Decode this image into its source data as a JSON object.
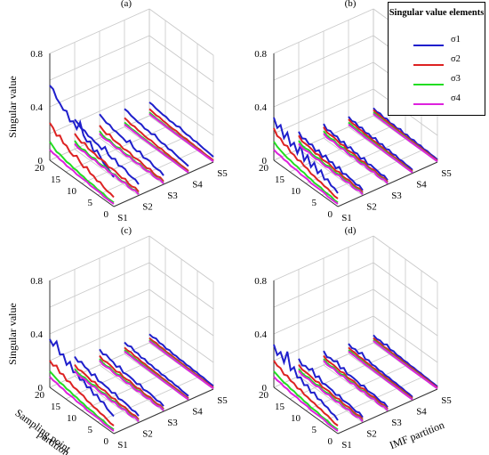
{
  "figure": {
    "ylabel": "Singular value",
    "xlabel": "Sampling point\npartition",
    "zlabel_imf": "IMF partition",
    "z_ticks": [
      "0",
      "0.4",
      "0.8"
    ],
    "x_ticks": [
      "20",
      "15",
      "10",
      "5",
      "0"
    ],
    "s_ticks": [
      "S1",
      "S2",
      "S3",
      "S4",
      "S5"
    ]
  },
  "legend": {
    "title": "Singular value elements",
    "items": [
      {
        "label": "σ1",
        "color": "#1f1fcc"
      },
      {
        "label": "σ2",
        "color": "#dd2222"
      },
      {
        "label": "σ3",
        "color": "#22dd22"
      },
      {
        "label": "σ4",
        "color": "#dd22dd"
      }
    ]
  },
  "chart_data": [
    {
      "type": "line",
      "subtitle": "(a)",
      "x_label": "",
      "y_label": "Singular value",
      "zlim": [
        0,
        0.8
      ],
      "series": [
        {
          "name": "σ1",
          "imf": "S1",
          "values": [
            0.56,
            0.55,
            0.5,
            0.48,
            0.45,
            0.46,
            0.4,
            0.42,
            0.38,
            0.45,
            0.37,
            0.34,
            0.36,
            0.3,
            0.33,
            0.3,
            0.27,
            0.26,
            0.24,
            0.22
          ]
        },
        {
          "name": "σ2",
          "imf": "S1",
          "values": [
            0.28,
            0.26,
            0.22,
            0.24,
            0.2,
            0.2,
            0.17,
            0.16,
            0.18,
            0.15,
            0.13,
            0.15,
            0.12,
            0.12,
            0.1,
            0.11,
            0.09,
            0.08,
            0.08,
            0.07
          ]
        },
        {
          "name": "σ3",
          "imf": "S1",
          "values": [
            0.14,
            0.12,
            0.1,
            0.1,
            0.09,
            0.08,
            0.08,
            0.07,
            0.07,
            0.06,
            0.06,
            0.05,
            0.05,
            0.05,
            0.04,
            0.04,
            0.04,
            0.03,
            0.03,
            0.03
          ]
        },
        {
          "name": "σ4",
          "imf": "S1",
          "values": [
            0.08,
            0.07,
            0.07,
            0.06,
            0.06,
            0.05,
            0.05,
            0.05,
            0.04,
            0.04,
            0.04,
            0.04,
            0.03,
            0.03,
            0.03,
            0.03,
            0.02,
            0.02,
            0.02,
            0.02
          ]
        }
      ]
    },
    {
      "type": "line",
      "subtitle": "(b)",
      "x_label": "",
      "y_label": "",
      "zlim": [
        0,
        0.8
      ],
      "series": [
        {
          "name": "σ1",
          "imf": "S1",
          "values": [
            0.32,
            0.26,
            0.3,
            0.22,
            0.28,
            0.2,
            0.24,
            0.18,
            0.26,
            0.16,
            0.22,
            0.15,
            0.2,
            0.14,
            0.18,
            0.13,
            0.15,
            0.12,
            0.12,
            0.1
          ]
        },
        {
          "name": "σ2",
          "imf": "S1",
          "values": [
            0.24,
            0.2,
            0.2,
            0.17,
            0.18,
            0.15,
            0.15,
            0.13,
            0.14,
            0.12,
            0.12,
            0.1,
            0.1,
            0.09,
            0.09,
            0.08,
            0.08,
            0.07,
            0.06,
            0.06
          ]
        },
        {
          "name": "σ3",
          "imf": "S1",
          "values": [
            0.14,
            0.12,
            0.11,
            0.1,
            0.09,
            0.09,
            0.08,
            0.08,
            0.07,
            0.07,
            0.06,
            0.06,
            0.05,
            0.05,
            0.05,
            0.04,
            0.04,
            0.04,
            0.03,
            0.03
          ]
        },
        {
          "name": "σ4",
          "imf": "S1",
          "values": [
            0.08,
            0.07,
            0.07,
            0.06,
            0.06,
            0.05,
            0.05,
            0.05,
            0.04,
            0.04,
            0.04,
            0.03,
            0.03,
            0.03,
            0.03,
            0.03,
            0.02,
            0.02,
            0.02,
            0.02
          ]
        }
      ]
    },
    {
      "type": "line",
      "subtitle": "(c)",
      "x_label": "Sampling point partition",
      "y_label": "Singular value",
      "zlim": [
        0,
        0.8
      ],
      "series": [
        {
          "name": "σ1",
          "imf": "S1",
          "values": [
            0.36,
            0.33,
            0.38,
            0.3,
            0.32,
            0.26,
            0.3,
            0.24,
            0.26,
            0.22,
            0.24,
            0.2,
            0.22,
            0.18,
            0.2,
            0.17,
            0.18,
            0.15,
            0.14,
            0.13
          ]
        },
        {
          "name": "σ2",
          "imf": "S1",
          "values": [
            0.2,
            0.18,
            0.2,
            0.16,
            0.17,
            0.14,
            0.15,
            0.13,
            0.13,
            0.12,
            0.12,
            0.1,
            0.1,
            0.09,
            0.09,
            0.08,
            0.08,
            0.07,
            0.06,
            0.06
          ]
        },
        {
          "name": "σ3",
          "imf": "S1",
          "values": [
            0.12,
            0.11,
            0.1,
            0.09,
            0.09,
            0.08,
            0.08,
            0.07,
            0.07,
            0.06,
            0.06,
            0.05,
            0.05,
            0.05,
            0.04,
            0.04,
            0.04,
            0.03,
            0.03,
            0.03
          ]
        },
        {
          "name": "σ4",
          "imf": "S1",
          "values": [
            0.08,
            0.07,
            0.07,
            0.06,
            0.06,
            0.05,
            0.05,
            0.05,
            0.04,
            0.04,
            0.04,
            0.03,
            0.03,
            0.03,
            0.03,
            0.03,
            0.02,
            0.02,
            0.02,
            0.02
          ]
        }
      ]
    },
    {
      "type": "line",
      "subtitle": "(d)",
      "x_label": "",
      "y_label": "",
      "zlim": [
        0,
        0.8
      ],
      "series": [
        {
          "name": "σ1",
          "imf": "S1",
          "values": [
            0.32,
            0.26,
            0.3,
            0.24,
            0.34,
            0.22,
            0.26,
            0.2,
            0.22,
            0.18,
            0.2,
            0.16,
            0.18,
            0.15,
            0.16,
            0.14,
            0.14,
            0.12,
            0.12,
            0.1
          ]
        },
        {
          "name": "σ2",
          "imf": "S1",
          "values": [
            0.2,
            0.18,
            0.18,
            0.15,
            0.16,
            0.14,
            0.14,
            0.12,
            0.13,
            0.11,
            0.11,
            0.1,
            0.1,
            0.09,
            0.09,
            0.08,
            0.08,
            0.07,
            0.06,
            0.06
          ]
        },
        {
          "name": "σ3",
          "imf": "S1",
          "values": [
            0.12,
            0.11,
            0.1,
            0.09,
            0.09,
            0.08,
            0.08,
            0.07,
            0.07,
            0.06,
            0.06,
            0.05,
            0.05,
            0.05,
            0.04,
            0.04,
            0.04,
            0.03,
            0.03,
            0.03
          ]
        },
        {
          "name": "σ4",
          "imf": "S1",
          "values": [
            0.08,
            0.07,
            0.07,
            0.06,
            0.06,
            0.05,
            0.05,
            0.05,
            0.04,
            0.04,
            0.04,
            0.03,
            0.03,
            0.03,
            0.03,
            0.03,
            0.02,
            0.02,
            0.02,
            0.02
          ]
        }
      ]
    }
  ]
}
